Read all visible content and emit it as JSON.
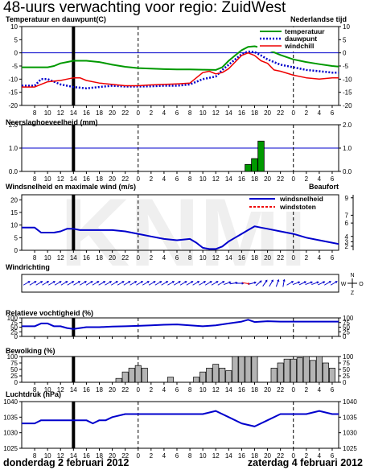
{
  "title": "48-uurs verwachting voor regio: ZuidWest",
  "footer": {
    "left": "donderdag 2 februari 2012",
    "right": "zaterdag 4 februari 2012"
  },
  "colors": {
    "temperature": "#009900",
    "dewpoint": "#0000cc",
    "windchill": "#ee0000",
    "wind": "#0000cc",
    "gusts": "#ee0000",
    "precip": "#009900",
    "cloud": "#b4b4b4",
    "line_blue": "#0000cc"
  },
  "x_axis": {
    "start_hour": 6,
    "end_hour": 55,
    "tick_labels": [
      "8",
      "10",
      "12",
      "14",
      "16",
      "18",
      "20",
      "22",
      "0",
      "2",
      "4",
      "6",
      "8",
      "10",
      "12",
      "14",
      "16",
      "18",
      "20",
      "22",
      "0",
      "2",
      "4",
      "6"
    ],
    "current_hour": 14,
    "day_boundaries": [
      24,
      48
    ]
  },
  "chart_data": [
    {
      "id": "temperature",
      "type": "line",
      "title": "Temperatuur en dauwpunt(C)",
      "right_note": "Nederlandse tijd",
      "ylim": [
        -20,
        10
      ],
      "yticks": [
        "10",
        "5",
        "0",
        "-5",
        "-10",
        "-15",
        "-20"
      ],
      "reference_line": 0,
      "legend": [
        "temperatuur",
        "dauwpunt",
        "windchill"
      ],
      "series": [
        {
          "name": "temperatuur",
          "x": [
            6,
            8,
            10,
            11,
            12,
            13,
            14,
            15,
            16,
            18,
            20,
            22,
            24,
            26,
            28,
            30,
            32,
            34,
            36,
            37,
            38,
            39,
            40,
            41,
            42,
            43,
            44,
            46,
            48,
            50,
            52,
            54,
            55
          ],
          "y": [
            -5.5,
            -5.5,
            -5.5,
            -5,
            -4,
            -3.5,
            -3,
            -3,
            -3,
            -3.5,
            -4.5,
            -5.3,
            -5.8,
            -6,
            -6.2,
            -6.3,
            -6.3,
            -6.4,
            -6.5,
            -5.5,
            -3,
            -1,
            1,
            2.3,
            2.5,
            2,
            1.2,
            -0.8,
            -2.5,
            -3.5,
            -4.3,
            -5,
            -5.2
          ]
        },
        {
          "name": "dauwpunt",
          "x": [
            6,
            8,
            9,
            10,
            11,
            12,
            13,
            14,
            16,
            18,
            20,
            22,
            24,
            26,
            28,
            30,
            32,
            34,
            36,
            37,
            38,
            39,
            40,
            41,
            42,
            43,
            44,
            46,
            48,
            50,
            52,
            54,
            55
          ],
          "y": [
            -12.5,
            -12.5,
            -10,
            -10,
            -11,
            -12,
            -12.5,
            -13,
            -13.5,
            -13,
            -12.5,
            -12.8,
            -12.8,
            -12.7,
            -12.5,
            -12.5,
            -12,
            -10,
            -9,
            -6.5,
            -4.5,
            -2.5,
            -0.5,
            0.5,
            0.3,
            -1,
            -2.5,
            -4.5,
            -5.5,
            -6.5,
            -7,
            -7.5,
            -7.5
          ]
        },
        {
          "name": "windchill",
          "x": [
            6,
            8,
            10,
            12,
            13,
            14,
            15,
            16,
            18,
            20,
            22,
            24,
            26,
            28,
            30,
            32,
            33,
            34,
            35,
            36,
            37,
            38,
            39,
            40,
            41,
            42,
            43,
            44,
            45,
            46,
            48,
            50,
            52,
            54,
            55
          ],
          "y": [
            -13,
            -13,
            -11,
            -10.5,
            -10,
            -9.5,
            -9.5,
            -10.5,
            -11.5,
            -12,
            -12.5,
            -12.5,
            -12.2,
            -12,
            -11.8,
            -11.5,
            -9.5,
            -7.5,
            -7,
            -8,
            -7.5,
            -6,
            -3.5,
            -1,
            0,
            -1,
            -3,
            -4,
            -6.5,
            -7,
            -8.5,
            -9.5,
            -10,
            -9.5,
            -9.5
          ]
        }
      ]
    },
    {
      "id": "precip",
      "type": "bar",
      "title": "Neerslaghoeveelheid (mm)",
      "ylim": [
        0,
        2
      ],
      "yticks": [
        "2.0",
        "1.0",
        "0.0"
      ],
      "reference_line": 1,
      "bars": [
        {
          "x": 41,
          "y": 0.3
        },
        {
          "x": 42,
          "y": 0.55
        },
        {
          "x": 43,
          "y": 1.3
        }
      ]
    },
    {
      "id": "wind",
      "type": "line",
      "title": "Windsnelheid en maximale wind (m/s)",
      "right_note": "Beaufort",
      "ylim": [
        0,
        22
      ],
      "yticks": [
        "20",
        "15",
        "10",
        "5",
        "0"
      ],
      "beaufort_ticks": [
        {
          "label": "9",
          "ms": 20.8
        },
        {
          "label": "7",
          "ms": 13.9
        },
        {
          "label": "6",
          "ms": 10.8
        },
        {
          "label": "4",
          "ms": 5.5
        },
        {
          "label": "3",
          "ms": 3.4
        },
        {
          "label": "2",
          "ms": 1.6
        }
      ],
      "legend": [
        "windsnelheid",
        "windstoten"
      ],
      "series": [
        {
          "name": "windsnelheid",
          "x": [
            6,
            8,
            9,
            10,
            11,
            12,
            13,
            14,
            15,
            16,
            18,
            20,
            22,
            24,
            26,
            28,
            30,
            32,
            33,
            34,
            35,
            36,
            37,
            38,
            39,
            40,
            41,
            42,
            43,
            44,
            46,
            48,
            50,
            52,
            54,
            55
          ],
          "y": [
            9,
            9,
            7,
            7,
            7,
            7.5,
            8.5,
            8.5,
            8,
            8,
            8,
            8,
            7.5,
            6.5,
            5.5,
            4.5,
            4,
            4.5,
            3,
            1,
            0.5,
            0.5,
            1.5,
            3.5,
            5,
            6.5,
            8,
            9.5,
            9,
            8.5,
            7.5,
            6.5,
            5,
            4,
            3,
            2.5
          ]
        }
      ]
    },
    {
      "id": "winddir",
      "type": "arrows",
      "title": "Windrichting",
      "compass": [
        "N",
        "W",
        "O",
        "Z"
      ],
      "directions_deg": [
        240,
        240,
        240,
        240,
        240,
        240,
        240,
        240,
        240,
        240,
        240,
        240,
        240,
        240,
        240,
        240,
        240,
        240,
        240,
        240,
        240,
        240,
        240,
        240,
        240,
        240,
        240,
        240,
        240,
        240,
        240,
        240,
        250,
        260,
        270,
        280,
        255,
        230,
        215,
        210,
        200,
        190,
        240,
        250,
        245,
        250,
        250,
        245,
        240,
        240
      ],
      "highlight_index": 35
    },
    {
      "id": "humidity",
      "type": "line",
      "title": "Relatieve vochtigheid (%)",
      "ylim": [
        0,
        100
      ],
      "yticks": [
        "100",
        "75",
        "50",
        "25",
        "0"
      ],
      "series": [
        {
          "name": "vochtigheid",
          "x": [
            6,
            8,
            9,
            10,
            11,
            12,
            13,
            14,
            15,
            16,
            18,
            20,
            22,
            24,
            26,
            28,
            30,
            32,
            34,
            36,
            38,
            40,
            41,
            42,
            43,
            44,
            46,
            48,
            50,
            52,
            54,
            55
          ],
          "y": [
            55,
            55,
            70,
            70,
            55,
            55,
            45,
            40,
            45,
            50,
            50,
            53,
            55,
            57,
            60,
            63,
            65,
            60,
            55,
            60,
            70,
            80,
            90,
            78,
            80,
            82,
            80,
            80,
            80,
            80,
            80,
            80
          ]
        }
      ]
    },
    {
      "id": "cloud",
      "type": "bar",
      "title": "Bewolking (%)",
      "ylim": [
        0,
        100
      ],
      "yticks": [
        "100",
        "75",
        "50",
        "25",
        "0"
      ],
      "bars": [
        {
          "x": 21,
          "y": 15
        },
        {
          "x": 22,
          "y": 40
        },
        {
          "x": 23,
          "y": 55
        },
        {
          "x": 24,
          "y": 65
        },
        {
          "x": 25,
          "y": 55
        },
        {
          "x": 29,
          "y": 20
        },
        {
          "x": 33,
          "y": 20
        },
        {
          "x": 34,
          "y": 40
        },
        {
          "x": 35,
          "y": 55
        },
        {
          "x": 36,
          "y": 70
        },
        {
          "x": 37,
          "y": 55
        },
        {
          "x": 38,
          "y": 45
        },
        {
          "x": 39,
          "y": 100
        },
        {
          "x": 40,
          "y": 100
        },
        {
          "x": 41,
          "y": 100
        },
        {
          "x": 42,
          "y": 100
        },
        {
          "x": 45,
          "y": 55
        },
        {
          "x": 46,
          "y": 75
        },
        {
          "x": 47,
          "y": 90
        },
        {
          "x": 48,
          "y": 90
        },
        {
          "x": 49,
          "y": 95
        },
        {
          "x": 50,
          "y": 100
        },
        {
          "x": 51,
          "y": 85
        },
        {
          "x": 52,
          "y": 100
        },
        {
          "x": 53,
          "y": 75
        },
        {
          "x": 54,
          "y": 55
        }
      ]
    },
    {
      "id": "pressure",
      "type": "line",
      "title": "Luchtdruk (hPa)",
      "ylim": [
        1025,
        1040
      ],
      "yticks": [
        "1040",
        "1035",
        "1030",
        "1025"
      ],
      "series": [
        {
          "name": "luchtdruk",
          "x": [
            6,
            8,
            9,
            10,
            16,
            17,
            18,
            19,
            20,
            22,
            24,
            34,
            36,
            38,
            40,
            42,
            44,
            46,
            48,
            50,
            52,
            54,
            55
          ],
          "y": [
            1033,
            1033,
            1034,
            1034,
            1034,
            1033,
            1034,
            1034,
            1035,
            1036,
            1036,
            1036,
            1037,
            1035,
            1033,
            1032,
            1034,
            1036,
            1036,
            1036,
            1037,
            1036,
            1036
          ]
        }
      ]
    }
  ]
}
